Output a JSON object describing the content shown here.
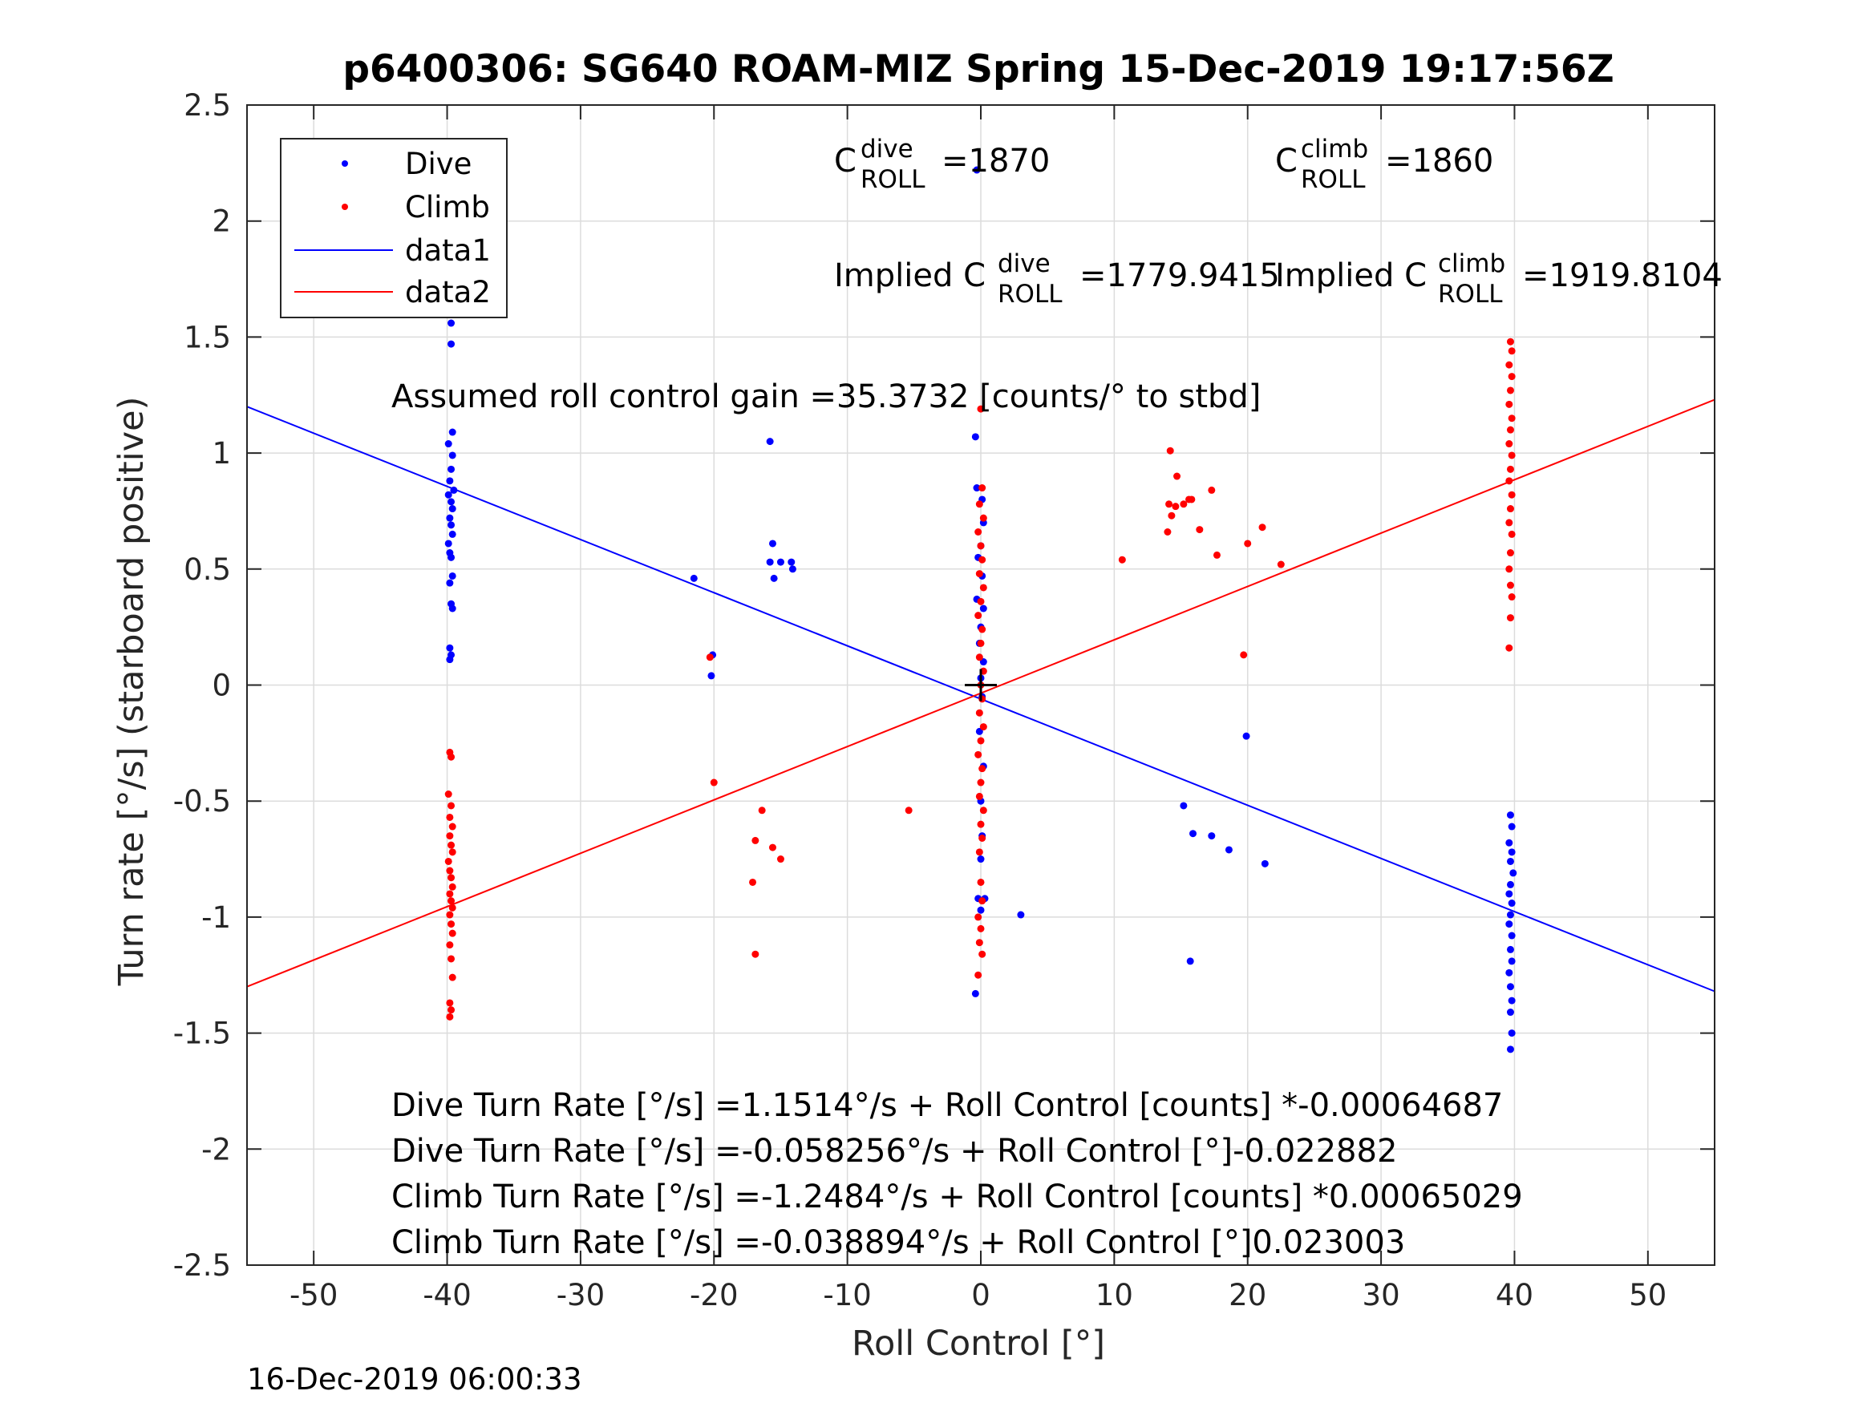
{
  "chart_data": {
    "type": "scatter",
    "title": "p6400306: SG640 ROAM-MIZ Spring 15-Dec-2019 19:17:56Z",
    "xlabel": "Roll Control [°]",
    "ylabel": "Turn rate [°/s] (starboard positive)",
    "xlim": [
      -55,
      55
    ],
    "ylim": [
      -2.5,
      2.5
    ],
    "xticks": [
      -50,
      -40,
      -30,
      -20,
      -10,
      0,
      10,
      20,
      30,
      40,
      50
    ],
    "yticks": [
      2.5,
      2,
      1.5,
      1,
      0.5,
      0,
      -0.5,
      -1,
      -1.5,
      -2,
      -2.5
    ],
    "xtick_labels": [
      "-50",
      "-40",
      "-30",
      "-20",
      "-10",
      "0",
      "10",
      "20",
      "30",
      "40",
      "50"
    ],
    "ytick_labels": [
      "2.5",
      "2",
      "1.5",
      "1",
      "0.5",
      "0",
      "-0.5",
      "-1",
      "-1.5",
      "-2",
      "-2.5"
    ],
    "grid": true,
    "legend_position": "top-left",
    "legend": [
      {
        "label": "Dive",
        "style": "dot",
        "color": "#0000ff"
      },
      {
        "label": "Climb",
        "style": "dot",
        "color": "#ff0000"
      },
      {
        "label": "data1",
        "style": "line",
        "color": "#0000ff"
      },
      {
        "label": "data2",
        "style": "line",
        "color": "#ff0000"
      }
    ],
    "series": [
      {
        "name": "Dive",
        "color": "#0000ff",
        "marker": "dot",
        "points": [
          [
            -39.8,
            1.74
          ],
          [
            -39.7,
            1.56
          ],
          [
            -39.7,
            1.47
          ],
          [
            -39.6,
            1.09
          ],
          [
            -39.9,
            1.04
          ],
          [
            -39.6,
            0.99
          ],
          [
            -39.7,
            0.93
          ],
          [
            -39.8,
            0.88
          ],
          [
            -39.5,
            0.84
          ],
          [
            -39.9,
            0.82
          ],
          [
            -39.7,
            0.79
          ],
          [
            -39.6,
            0.76
          ],
          [
            -39.8,
            0.72
          ],
          [
            -39.7,
            0.69
          ],
          [
            -39.6,
            0.65
          ],
          [
            -39.9,
            0.61
          ],
          [
            -39.8,
            0.57
          ],
          [
            -39.7,
            0.55
          ],
          [
            -39.6,
            0.47
          ],
          [
            -39.8,
            0.44
          ],
          [
            -39.7,
            0.35
          ],
          [
            -39.6,
            0.33
          ],
          [
            -39.8,
            0.16
          ],
          [
            -39.7,
            0.13
          ],
          [
            -39.8,
            0.11
          ],
          [
            -21.5,
            0.46
          ],
          [
            -20.1,
            0.13
          ],
          [
            -20.2,
            0.04
          ],
          [
            -15.8,
            1.05
          ],
          [
            -15.6,
            0.61
          ],
          [
            -15.8,
            0.53
          ],
          [
            -15.5,
            0.46
          ],
          [
            -15.0,
            0.53
          ],
          [
            -14.2,
            0.53
          ],
          [
            -14.1,
            0.5
          ],
          [
            -0.3,
            2.22
          ],
          [
            -0.4,
            1.07
          ],
          [
            -0.3,
            0.85
          ],
          [
            0.1,
            0.8
          ],
          [
            0.2,
            0.7
          ],
          [
            0.0,
            0.6
          ],
          [
            -0.2,
            0.55
          ],
          [
            0.1,
            0.47
          ],
          [
            -0.3,
            0.37
          ],
          [
            0.2,
            0.33
          ],
          [
            0.0,
            0.25
          ],
          [
            -0.1,
            0.18
          ],
          [
            0.2,
            0.1
          ],
          [
            0.0,
            0.03
          ],
          [
            0.1,
            -0.05
          ],
          [
            -0.1,
            -0.2
          ],
          [
            0.2,
            -0.35
          ],
          [
            0.0,
            -0.5
          ],
          [
            0.1,
            -0.65
          ],
          [
            0.0,
            -0.75
          ],
          [
            -0.2,
            -0.92
          ],
          [
            0.3,
            -0.92
          ],
          [
            0.0,
            -0.97
          ],
          [
            -0.4,
            -1.33
          ],
          [
            3.0,
            -0.99
          ],
          [
            15.2,
            -0.52
          ],
          [
            15.9,
            -0.64
          ],
          [
            17.3,
            -0.65
          ],
          [
            18.6,
            -0.71
          ],
          [
            21.3,
            -0.77
          ],
          [
            19.9,
            -0.22
          ],
          [
            15.7,
            -1.19
          ],
          [
            39.7,
            -0.56
          ],
          [
            39.8,
            -0.61
          ],
          [
            39.6,
            -0.68
          ],
          [
            39.8,
            -0.72
          ],
          [
            39.7,
            -0.76
          ],
          [
            39.9,
            -0.81
          ],
          [
            39.7,
            -0.86
          ],
          [
            39.6,
            -0.9
          ],
          [
            39.8,
            -0.94
          ],
          [
            39.7,
            -0.99
          ],
          [
            39.6,
            -1.03
          ],
          [
            39.8,
            -1.08
          ],
          [
            39.7,
            -1.14
          ],
          [
            39.8,
            -1.19
          ],
          [
            39.6,
            -1.24
          ],
          [
            39.7,
            -1.3
          ],
          [
            39.8,
            -1.36
          ],
          [
            39.7,
            -1.41
          ],
          [
            39.8,
            -1.5
          ],
          [
            39.7,
            -1.57
          ]
        ]
      },
      {
        "name": "Climb",
        "color": "#ff0000",
        "marker": "dot",
        "points": [
          [
            -39.8,
            -0.29
          ],
          [
            -39.7,
            -0.31
          ],
          [
            -39.9,
            -0.47
          ],
          [
            -39.7,
            -0.52
          ],
          [
            -39.8,
            -0.57
          ],
          [
            -39.6,
            -0.61
          ],
          [
            -39.8,
            -0.65
          ],
          [
            -39.7,
            -0.69
          ],
          [
            -39.6,
            -0.72
          ],
          [
            -39.9,
            -0.76
          ],
          [
            -39.8,
            -0.8
          ],
          [
            -39.7,
            -0.83
          ],
          [
            -39.6,
            -0.87
          ],
          [
            -39.8,
            -0.9
          ],
          [
            -39.7,
            -0.93
          ],
          [
            -39.6,
            -0.96
          ],
          [
            -39.8,
            -0.99
          ],
          [
            -39.7,
            -1.03
          ],
          [
            -39.6,
            -1.07
          ],
          [
            -39.8,
            -1.12
          ],
          [
            -39.7,
            -1.18
          ],
          [
            -39.6,
            -1.26
          ],
          [
            -39.8,
            -1.37
          ],
          [
            -39.7,
            -1.4
          ],
          [
            -39.8,
            -1.43
          ],
          [
            -20.3,
            0.12
          ],
          [
            -20.0,
            -0.42
          ],
          [
            -16.4,
            -0.54
          ],
          [
            -16.9,
            -0.67
          ],
          [
            -15.6,
            -0.7
          ],
          [
            -15.0,
            -0.75
          ],
          [
            -17.1,
            -0.85
          ],
          [
            -16.9,
            -1.16
          ],
          [
            -5.4,
            -0.54
          ],
          [
            0.0,
            1.19
          ],
          [
            0.1,
            0.85
          ],
          [
            -0.1,
            0.78
          ],
          [
            0.2,
            0.72
          ],
          [
            -0.2,
            0.66
          ],
          [
            0.0,
            0.6
          ],
          [
            0.1,
            0.54
          ],
          [
            -0.1,
            0.48
          ],
          [
            0.2,
            0.42
          ],
          [
            0.0,
            0.36
          ],
          [
            -0.2,
            0.3
          ],
          [
            0.1,
            0.24
          ],
          [
            0.0,
            0.18
          ],
          [
            -0.1,
            0.12
          ],
          [
            0.2,
            0.06
          ],
          [
            0.0,
            0.0
          ],
          [
            0.1,
            -0.06
          ],
          [
            -0.1,
            -0.12
          ],
          [
            0.2,
            -0.18
          ],
          [
            0.0,
            -0.24
          ],
          [
            -0.2,
            -0.3
          ],
          [
            0.1,
            -0.36
          ],
          [
            0.0,
            -0.42
          ],
          [
            -0.1,
            -0.48
          ],
          [
            0.2,
            -0.54
          ],
          [
            0.0,
            -0.6
          ],
          [
            0.1,
            -0.66
          ],
          [
            -0.1,
            -0.72
          ],
          [
            0.0,
            -0.85
          ],
          [
            0.1,
            -0.93
          ],
          [
            -0.2,
            -1.0
          ],
          [
            0.0,
            -1.05
          ],
          [
            -0.1,
            -1.11
          ],
          [
            0.1,
            -1.16
          ],
          [
            -0.2,
            -1.25
          ],
          [
            10.6,
            0.54
          ],
          [
            14.2,
            1.01
          ],
          [
            14.7,
            0.9
          ],
          [
            14.1,
            0.78
          ],
          [
            14.6,
            0.77
          ],
          [
            15.2,
            0.78
          ],
          [
            15.8,
            0.8
          ],
          [
            15.6,
            0.8
          ],
          [
            14.3,
            0.73
          ],
          [
            14.0,
            0.66
          ],
          [
            16.4,
            0.67
          ],
          [
            17.3,
            0.84
          ],
          [
            17.7,
            0.56
          ],
          [
            20.0,
            0.61
          ],
          [
            21.1,
            0.68
          ],
          [
            22.5,
            0.52
          ],
          [
            19.7,
            0.13
          ],
          [
            39.7,
            1.48
          ],
          [
            39.8,
            1.44
          ],
          [
            39.6,
            1.38
          ],
          [
            39.8,
            1.33
          ],
          [
            39.7,
            1.27
          ],
          [
            39.6,
            1.21
          ],
          [
            39.8,
            1.15
          ],
          [
            39.7,
            1.1
          ],
          [
            39.6,
            1.04
          ],
          [
            39.8,
            0.99
          ],
          [
            39.7,
            0.93
          ],
          [
            39.6,
            0.88
          ],
          [
            39.8,
            0.82
          ],
          [
            39.7,
            0.76
          ],
          [
            39.6,
            0.7
          ],
          [
            39.8,
            0.65
          ],
          [
            39.7,
            0.57
          ],
          [
            39.6,
            0.5
          ],
          [
            39.7,
            0.43
          ],
          [
            39.8,
            0.38
          ],
          [
            39.7,
            0.29
          ],
          [
            39.6,
            0.16
          ]
        ]
      },
      {
        "name": "data1",
        "color": "#0000ff",
        "marker": "line",
        "points": [
          [
            -55,
            1.2
          ],
          [
            55,
            -1.32
          ]
        ]
      },
      {
        "name": "data2",
        "color": "#ff0000",
        "marker": "line",
        "points": [
          [
            -55,
            -1.3
          ],
          [
            55,
            1.23
          ]
        ]
      }
    ],
    "center_marker": {
      "x": 0,
      "y": 0,
      "symbol": "+",
      "color": "#000000"
    }
  },
  "annotations": {
    "c_dive_base": "C",
    "c_dive_sup": "dive",
    "c_dive_sub": "ROLL",
    "c_dive_value": "=1870",
    "c_climb_base": "C",
    "c_climb_sup": "climb",
    "c_climb_sub": "ROLL",
    "c_climb_value": "=1860",
    "implied_dive_prefix": "Implied C",
    "implied_dive_sup": "dive",
    "implied_dive_sub": "ROLL",
    "implied_dive_value": "=1779.9415",
    "implied_climb_prefix": "Implied C",
    "implied_climb_sup": "climb",
    "implied_climb_sub": "ROLL",
    "implied_climb_value": "=1919.8104",
    "gain": "Assumed roll control gain =35.3732 [counts/° to stbd]",
    "eq1": "Dive Turn Rate [°/s] =1.1514°/s + Roll Control [counts] *-0.00064687",
    "eq2": "Dive Turn Rate [°/s] =-0.058256°/s + Roll Control [°]-0.022882",
    "eq3": "Climb Turn Rate [°/s] =-1.2484°/s + Roll Control [counts] *0.00065029",
    "eq4": "Climb Turn Rate [°/s] =-0.038894°/s + Roll Control [°]0.023003"
  },
  "footer_timestamp": "16-Dec-2019 06:00:33"
}
